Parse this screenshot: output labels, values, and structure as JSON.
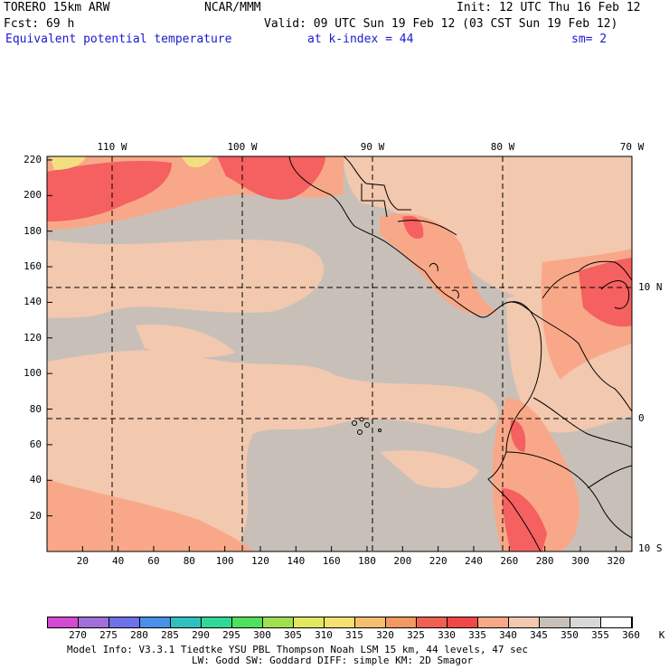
{
  "header": {
    "model": "TORERO  15km ARW",
    "org": "NCAR/MMM",
    "init": "Init: 12 UTC Thu 16 Feb 12",
    "fcst": "Fcst:   69 h",
    "valid": "Valid: 09 UTC Sun 19 Feb 12 (03 CST Sun 19 Feb 12)",
    "field": "Equivalent potential temperature",
    "level": "at k-index =  44",
    "smooth": "sm= 2"
  },
  "map": {
    "x_ticks": [
      "20",
      "40",
      "60",
      "80",
      "100",
      "120",
      "140",
      "160",
      "180",
      "200",
      "220",
      "240",
      "260",
      "280",
      "300",
      "320"
    ],
    "y_ticks": [
      "20",
      "40",
      "60",
      "80",
      "100",
      "120",
      "140",
      "160",
      "180",
      "200",
      "220"
    ],
    "lon_labels": [
      "110 W",
      "100 W",
      "90 W",
      "80 W",
      "70 W"
    ],
    "lat_labels": [
      "10 N",
      "0",
      "10 S"
    ],
    "colors": {
      "sea_gray": "#c8c0b8",
      "light_salmon": "#f2c8ae",
      "salmon": "#f8a888",
      "red": "#f56060",
      "yellow": "#f2e080",
      "coast": "#000000"
    }
  },
  "colorbar": {
    "labels": [
      "270",
      "275",
      "280",
      "285",
      "290",
      "295",
      "300",
      "305",
      "310",
      "315",
      "320",
      "325",
      "330",
      "335",
      "340",
      "345",
      "350",
      "355",
      "360",
      "K"
    ],
    "colors": [
      "#d24bd2",
      "#a070d8",
      "#7070e8",
      "#4890e8",
      "#30c0c0",
      "#30d898",
      "#50e060",
      "#a0e050",
      "#e0e860",
      "#f4e070",
      "#f4c070",
      "#f29860",
      "#f06050",
      "#f04848",
      "#f8a888",
      "#f2c8ae",
      "#c8c0b8",
      "#d8d8d8",
      "#ffffff"
    ]
  },
  "footer": {
    "line1": "Model Info: V3.3.1    Tiedtke YSU PBL  Thompson    Noah LSM  15 km,   44 levels,   47 sec",
    "line2": "LW: Godd SW: Goddard DIFF: simple KM: 2D Smagor"
  }
}
